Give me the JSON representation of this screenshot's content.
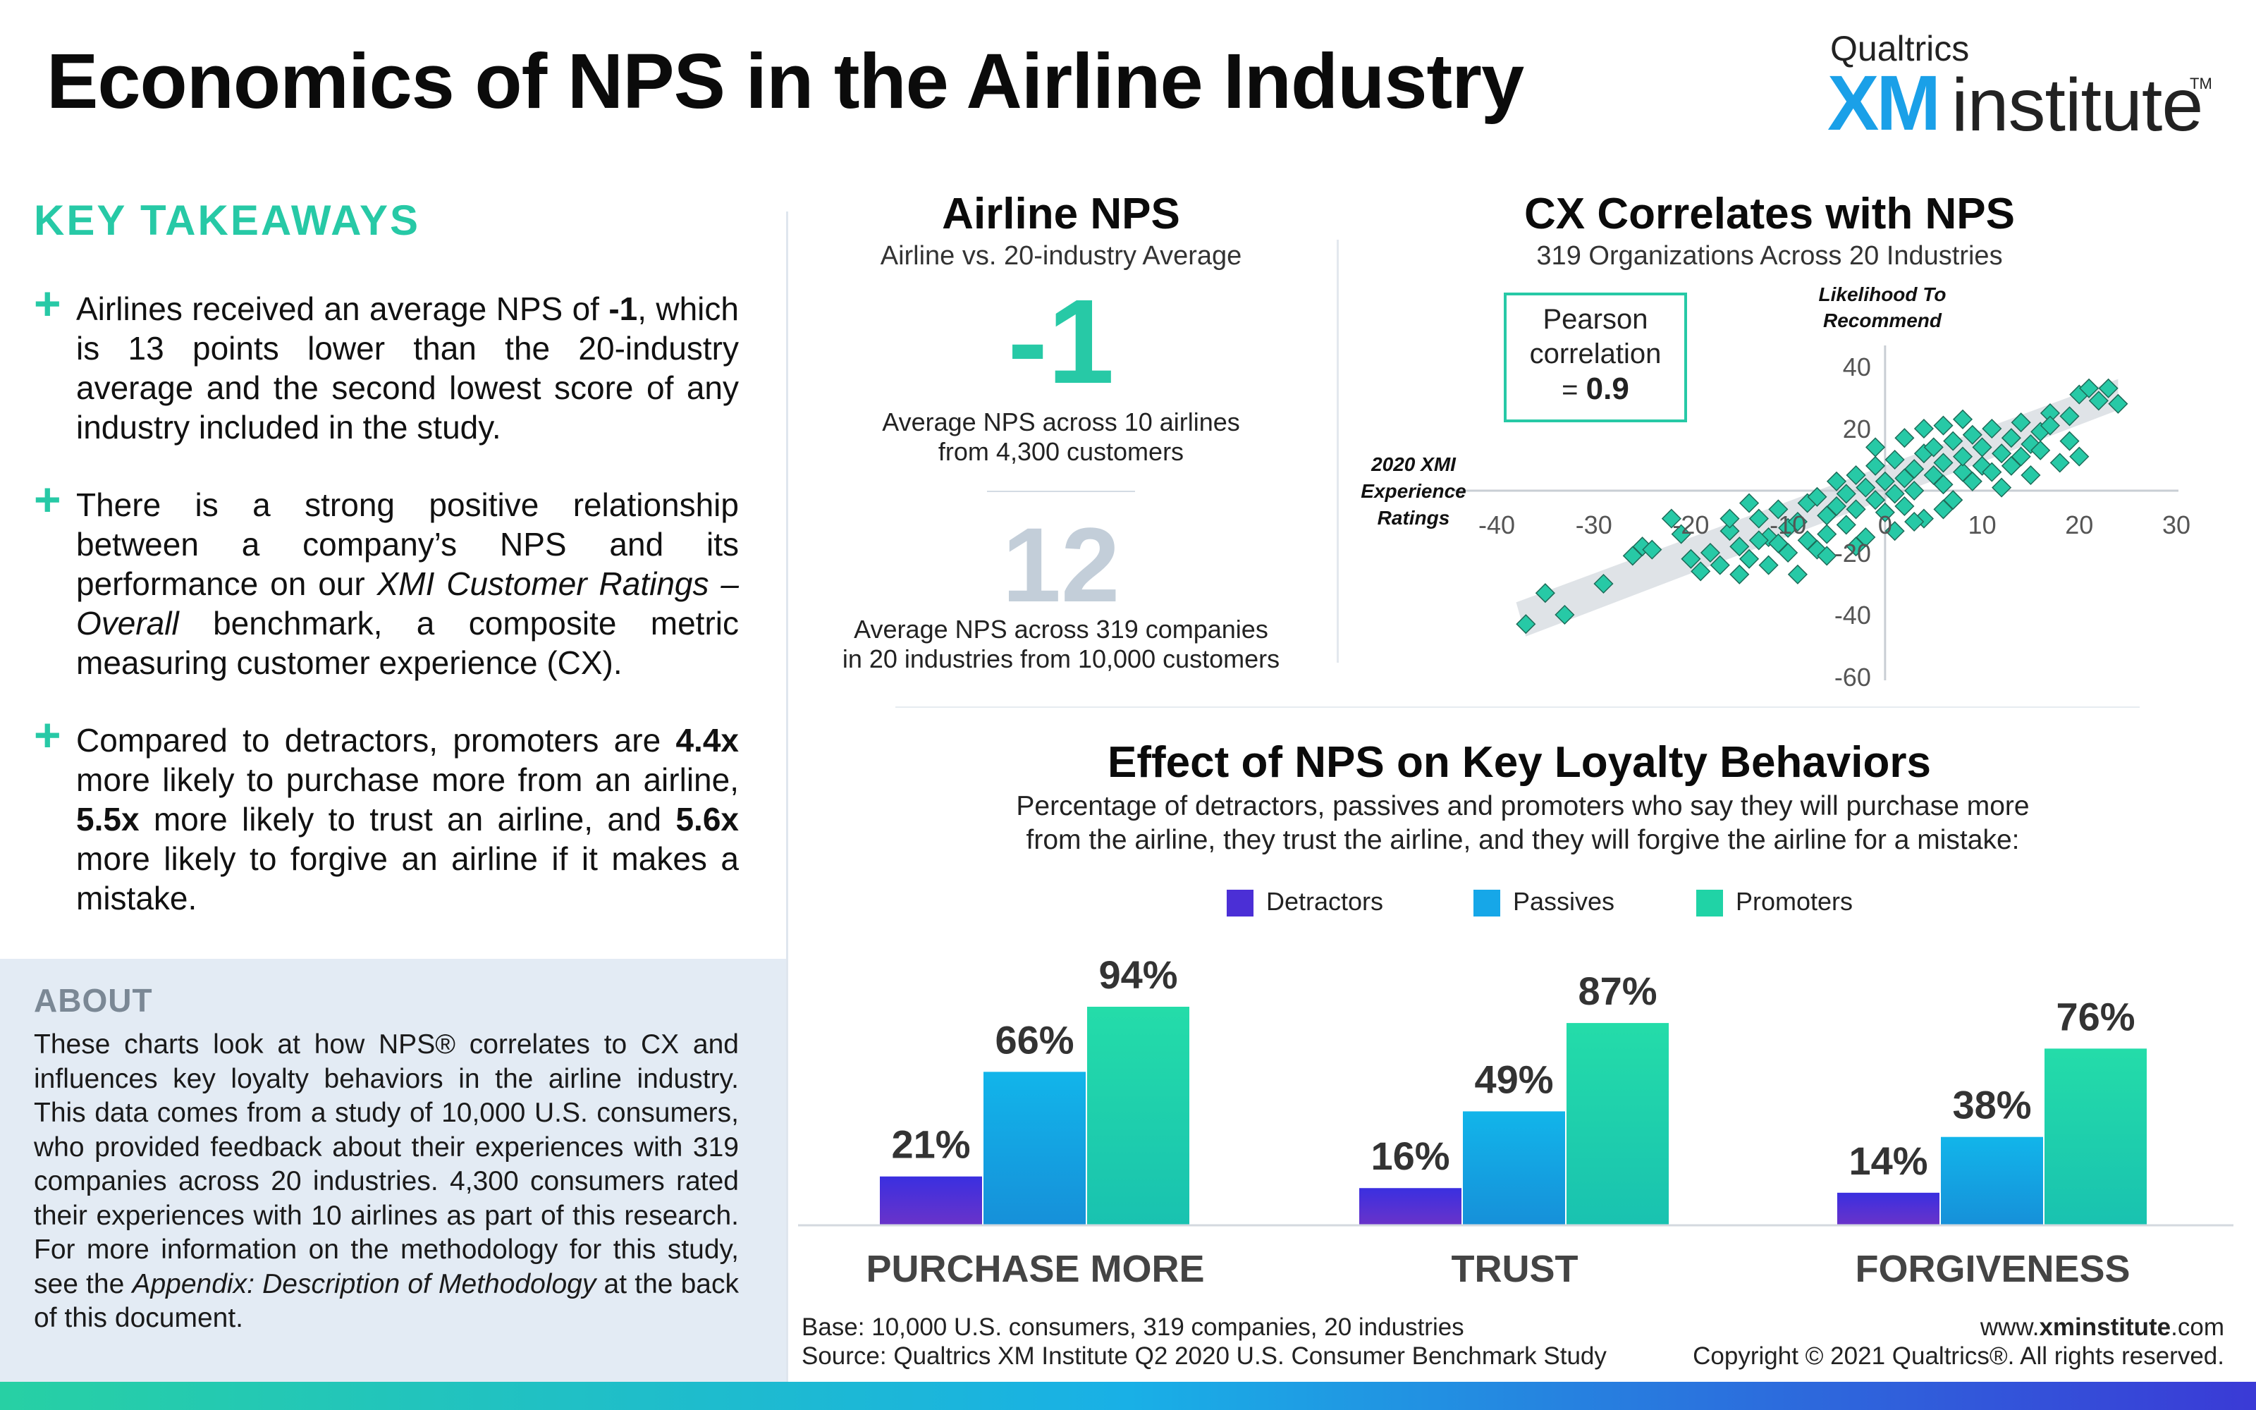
{
  "header": {
    "title": "Economics of NPS in the Airline Industry",
    "logo": {
      "brand": "Qualtrics",
      "xm": "XM",
      "institute": "institute",
      "tm": "TM"
    }
  },
  "left": {
    "takeaways_heading": "KEY TAKEAWAYS",
    "takeaways": [
      {
        "pre": "Airlines received an average NPS of ",
        "bold": "-1",
        "post": ", which is 13 points lower than the 20-industry average and the second lowest score of any industry included in the study."
      },
      {
        "pre": "There is a strong positive relationship between a company’s NPS and its performance on our ",
        "italic": "XMI Customer Ratings – Overall",
        "post": " benchmark, a composite metric measuring customer experience (CX)."
      },
      {
        "p1": "Compared to detractors, promoters are ",
        "b1": "4.4x",
        "p2": " more likely to purchase more from an airline, ",
        "b2": "5.5x",
        "p3": " more likely to trust an airline, and ",
        "b3": "5.6x",
        "p4": " more likely to forgive an airline if it makes a mistake."
      }
    ],
    "about_heading": "ABOUT",
    "about": {
      "pre": "These charts look at how NPS® correlates to CX and influences key loyalty behaviors in the airline industry. This data comes from a study of 10,000 U.S. consumers, who provided feedback about their experiences with 319 companies across 20 industries. 4,300 consumers rated their experiences with 10 airlines as part of this research. For more information on the methodology for this study, see the ",
      "italic": "Appendix: Description of Methodology",
      "post": " at the back of this document."
    }
  },
  "nps": {
    "title": "Airline NPS",
    "subtitle": "Airline vs. 20-industry Average",
    "airline_value": "-1",
    "airline_caption_1": "Average NPS across 10 airlines",
    "airline_caption_2": "from 4,300 customers",
    "avg_value": "12",
    "avg_caption_1": "Average NPS across 319 companies",
    "avg_caption_2": "in 20 industries from 10,000 customers"
  },
  "cx": {
    "title": "CX Correlates with NPS",
    "subtitle": "319 Organizations Across 20 Industries",
    "pearson_line1": "Pearson",
    "pearson_line2": "correlation",
    "pearson_prefix": "= ",
    "pearson_value": "0.9"
  },
  "loyalty": {
    "title": "Effect of NPS on Key Loyalty Behaviors",
    "subtitle_1": "Percentage of detractors, passives and promoters who say they will purchase more",
    "subtitle_2": "from the airline, they trust the airline, and they will forgive the airline for a mistake:"
  },
  "chart_data": [
    {
      "type": "scatter",
      "xlabel": "2020 XMI Experience Ratings",
      "ylabel": "Likelihood To Recommend",
      "xlim": [
        -40,
        30
      ],
      "ylim": [
        -60,
        40
      ],
      "xticks": [
        -40,
        -30,
        -20,
        -10,
        0,
        10,
        20,
        30
      ],
      "yticks": [
        40,
        20,
        0,
        -20,
        -40,
        -60
      ],
      "marker_color": "#27c9a6",
      "trend_band_color": "#d9dee3",
      "points": [
        [
          -37,
          -43
        ],
        [
          -35,
          -33
        ],
        [
          -33,
          -40
        ],
        [
          -29,
          -30
        ],
        [
          -25,
          -18
        ],
        [
          -24,
          -19
        ],
        [
          -21,
          -14
        ],
        [
          -20,
          -22
        ],
        [
          -19,
          -26
        ],
        [
          -18,
          -20
        ],
        [
          -17,
          -24
        ],
        [
          -16,
          -13
        ],
        [
          -15,
          -27
        ],
        [
          -15,
          -18
        ],
        [
          -14,
          -22
        ],
        [
          -13,
          -9
        ],
        [
          -12,
          -15
        ],
        [
          -12,
          -24
        ],
        [
          -11,
          -6
        ],
        [
          -10,
          -12
        ],
        [
          -10,
          -20
        ],
        [
          -9,
          -10
        ],
        [
          -8,
          -4
        ],
        [
          -8,
          -16
        ],
        [
          -7,
          -2
        ],
        [
          -7,
          -19
        ],
        [
          -6,
          -8
        ],
        [
          -6,
          -14
        ],
        [
          -5,
          -5
        ],
        [
          -5,
          3
        ],
        [
          -4,
          -11
        ],
        [
          -4,
          -1
        ],
        [
          -3,
          -6
        ],
        [
          -3,
          5
        ],
        [
          -2,
          -15
        ],
        [
          -2,
          1
        ],
        [
          -1,
          -3
        ],
        [
          -1,
          8
        ],
        [
          0,
          -7
        ],
        [
          0,
          3
        ],
        [
          1,
          -1
        ],
        [
          1,
          10
        ],
        [
          2,
          4
        ],
        [
          2,
          -5
        ],
        [
          3,
          7
        ],
        [
          3,
          0
        ],
        [
          4,
          12
        ],
        [
          4,
          -9
        ],
        [
          5,
          5
        ],
        [
          5,
          14
        ],
        [
          6,
          2
        ],
        [
          6,
          9
        ],
        [
          7,
          -3
        ],
        [
          7,
          16
        ],
        [
          8,
          6
        ],
        [
          8,
          11
        ],
        [
          9,
          18
        ],
        [
          9,
          3
        ],
        [
          10,
          8
        ],
        [
          10,
          14
        ],
        [
          11,
          20
        ],
        [
          11,
          6
        ],
        [
          12,
          12
        ],
        [
          12,
          1
        ],
        [
          13,
          17
        ],
        [
          13,
          8
        ],
        [
          14,
          22
        ],
        [
          14,
          11
        ],
        [
          15,
          5
        ],
        [
          15,
          15
        ],
        [
          16,
          19
        ],
        [
          16,
          13
        ],
        [
          17,
          25
        ],
        [
          18,
          9
        ],
        [
          19,
          16
        ],
        [
          20,
          31
        ],
        [
          21,
          33
        ],
        [
          22,
          29
        ],
        [
          20,
          11
        ],
        [
          17,
          21
        ],
        [
          -22,
          -9
        ],
        [
          -26,
          -21
        ],
        [
          -9,
          -27
        ],
        [
          -6,
          -21
        ],
        [
          -3,
          -18
        ],
        [
          -13,
          -16
        ],
        [
          -16,
          -9
        ],
        [
          1,
          -13
        ],
        [
          3,
          -10
        ],
        [
          6,
          -6
        ],
        [
          -1,
          14
        ],
        [
          2,
          17
        ],
        [
          4,
          20
        ],
        [
          6,
          21
        ],
        [
          8,
          23
        ],
        [
          23,
          33
        ],
        [
          24,
          28
        ],
        [
          19,
          24
        ],
        [
          -14,
          -4
        ],
        [
          -11,
          -17
        ]
      ]
    },
    {
      "type": "bar",
      "categories": [
        "PURCHASE MORE",
        "TRUST",
        "FORGIVENESS"
      ],
      "series": [
        {
          "name": "Detractors",
          "values": [
            21,
            16,
            14
          ],
          "color": "#4b2fd6"
        },
        {
          "name": "Passives",
          "values": [
            66,
            49,
            38
          ],
          "color": "#16a7e8"
        },
        {
          "name": "Promoters",
          "values": [
            94,
            87,
            76
          ],
          "color": "#20d3a6"
        }
      ],
      "ylim": [
        0,
        100
      ],
      "value_suffix": "%"
    }
  ],
  "footer": {
    "base": "Base: 10,000 U.S. consumers, 319 companies, 20 industries",
    "source": "Source: Qualtrics XM Institute Q2 2020 U.S. Consumer Benchmark Study",
    "site_pre": "www.",
    "site_bold": "xminstitute",
    "site_post": ".com",
    "copyright": "Copyright © 2021 Qualtrics®. All rights reserved."
  }
}
